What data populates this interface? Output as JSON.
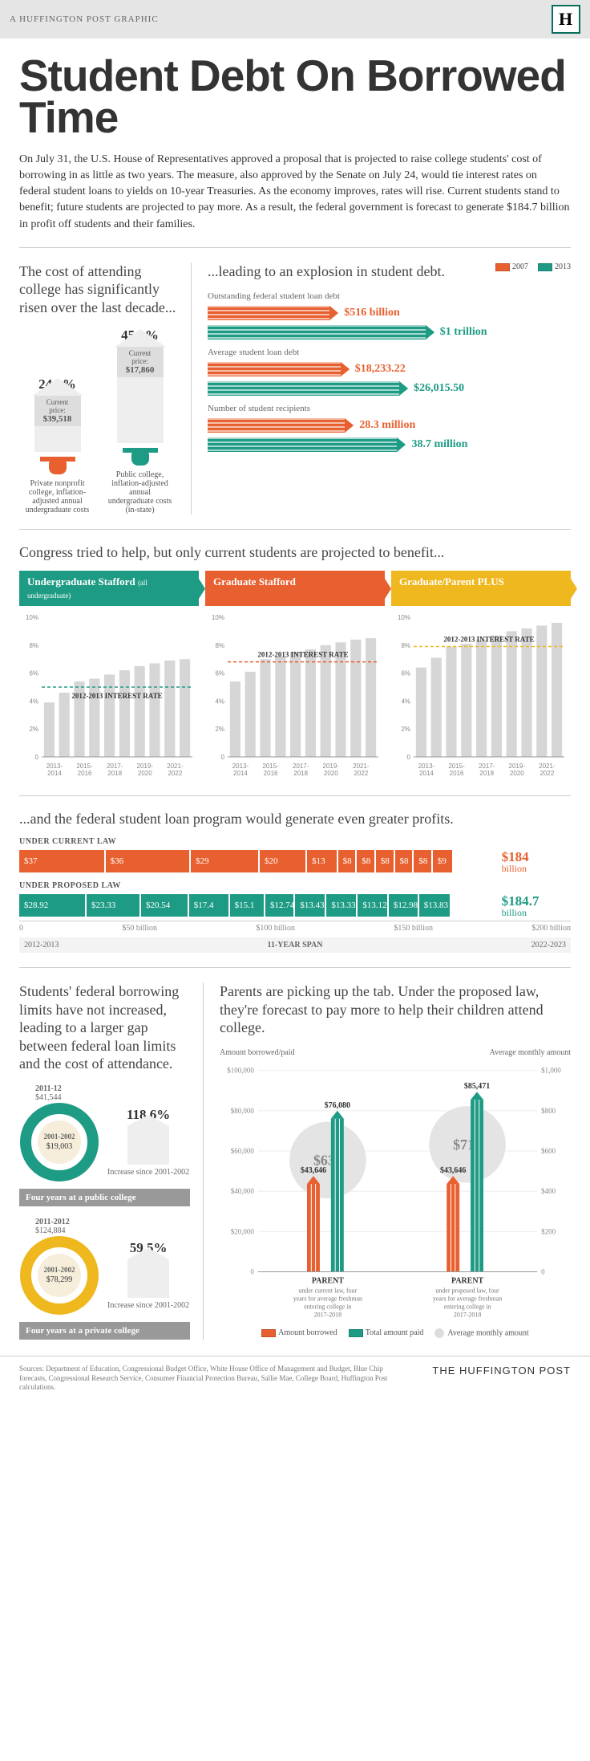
{
  "colors": {
    "orange": "#e8602f",
    "teal": "#1e9b84",
    "yellow": "#f0b81f",
    "gray_bar": "#d6d6d6",
    "gray_light": "#ededed",
    "text": "#333333",
    "rule": "#cccccc"
  },
  "header": {
    "graphic_label": "A HUFFINGTON POST GRAPHIC",
    "logo": "H"
  },
  "title": "Student Debt On Borrowed Time",
  "intro": "On July 31, the U.S. House of Representatives approved a proposal that is projected to raise college students' cost of borrowing in as little as two years. The measure, also approved by the Senate on July 24, would tie interest rates on federal student loans to yields on 10-year Treasuries. As the economy improves, rates will rise. Current students stand to benefit; future students are projected to pay more. As a result, the federal government is forecast to generate $184.7 billion in profit off students and their families.",
  "cost": {
    "title": "The cost of attending college has significantly risen over the last decade...",
    "private": {
      "pct": "24.9%",
      "price_label": "Current price:",
      "price": "$39,518",
      "caption": "Private nonprofit college, inflation-adjusted annual undergraduate costs",
      "arrow_h": 70,
      "color": "#e8602f"
    },
    "public": {
      "pct": "45.2%",
      "price_label": "Current price:",
      "price": "$17,860",
      "caption": "Public college, inflation-adjusted annual undergraduate costs (in-state)",
      "arrow_h": 120,
      "color": "#1e9b84"
    }
  },
  "explosion": {
    "title": "...leading to an explosion in student debt.",
    "legend": [
      {
        "label": "2007",
        "color": "#e8602f"
      },
      {
        "label": "2013",
        "color": "#1e9b84"
      }
    ],
    "metrics": [
      {
        "label": "Outstanding federal student loan debt",
        "bars": [
          {
            "pct": 56,
            "color": "#e8602f",
            "value": "$516 billion"
          },
          {
            "pct": 100,
            "color": "#1e9b84",
            "value": "$1 trillion"
          }
        ]
      },
      {
        "label": "Average student loan debt",
        "bars": [
          {
            "pct": 61,
            "color": "#e8602f",
            "value": "$18,233.22"
          },
          {
            "pct": 88,
            "color": "#1e9b84",
            "value": "$26,015.50"
          }
        ]
      },
      {
        "label": "Number of student recipients",
        "bars": [
          {
            "pct": 63,
            "color": "#e8602f",
            "value": "28.3 million"
          },
          {
            "pct": 87,
            "color": "#1e9b84",
            "value": "38.7 million"
          }
        ]
      }
    ]
  },
  "congress": {
    "title": "Congress tried to help, but only current students are projected to benefit...",
    "tabs": [
      {
        "label": "Undergraduate Stafford",
        "sub": "(all undergraduate)",
        "color": "#1e9b84"
      },
      {
        "label": "Graduate Stafford",
        "sub": "",
        "color": "#e8602f"
      },
      {
        "label": "Graduate/Parent PLUS",
        "sub": "",
        "color": "#f0b81f"
      }
    ],
    "yticks": [
      "0",
      "2%",
      "4%",
      "6%",
      "8%",
      "10%"
    ],
    "xticks": [
      "2013-2014",
      "2015-2016",
      "2017-2018",
      "2019-2020",
      "2021-2022"
    ],
    "rate_label": "2012-2013 INTEREST RATE",
    "charts": [
      {
        "line_y": 5.0,
        "line_color": "#1e9b84",
        "bars": [
          3.9,
          4.6,
          5.4,
          5.6,
          5.9,
          6.2,
          6.5,
          6.7,
          6.9,
          7.0
        ]
      },
      {
        "line_y": 6.8,
        "line_color": "#e8602f",
        "bars": [
          5.4,
          6.1,
          7.0,
          7.2,
          7.5,
          7.7,
          8.0,
          8.2,
          8.4,
          8.5
        ]
      },
      {
        "line_y": 7.9,
        "line_color": "#f0b81f",
        "bars": [
          6.4,
          7.1,
          7.9,
          8.1,
          8.4,
          8.7,
          9.0,
          9.2,
          9.4,
          9.6
        ]
      }
    ]
  },
  "profits": {
    "title": "...and the federal student loan program would generate even greater profits.",
    "rows": [
      {
        "label": "UNDER CURRENT LAW",
        "color": "#e8602f",
        "total": "$184 billion",
        "segs": [
          {
            "w": 18.2,
            "v": "$37"
          },
          {
            "w": 18.0,
            "v": "$36"
          },
          {
            "w": 14.5,
            "v": "$29"
          },
          {
            "w": 10.0,
            "v": "$20"
          },
          {
            "w": 6.5,
            "v": "$13"
          },
          {
            "w": 4.0,
            "v": "$8"
          },
          {
            "w": 4.0,
            "v": "$8"
          },
          {
            "w": 4.0,
            "v": "$8"
          },
          {
            "w": 4.0,
            "v": "$8"
          },
          {
            "w": 4.0,
            "v": "$8"
          },
          {
            "w": 4.5,
            "v": "$9"
          }
        ]
      },
      {
        "label": "UNDER PROPOSED LAW",
        "color": "#1e9b84",
        "total": "$184.7 billion",
        "segs": [
          {
            "w": 14.2,
            "v": "$28.92"
          },
          {
            "w": 11.5,
            "v": "$23.33"
          },
          {
            "w": 10.1,
            "v": "$20.54"
          },
          {
            "w": 8.6,
            "v": "$17.4"
          },
          {
            "w": 7.5,
            "v": "$15.1"
          },
          {
            "w": 6.3,
            "v": "$12.74"
          },
          {
            "w": 6.6,
            "v": "$13.43"
          },
          {
            "w": 6.6,
            "v": "$13.33"
          },
          {
            "w": 6.5,
            "v": "$13.12"
          },
          {
            "w": 6.4,
            "v": "$12.98"
          },
          {
            "w": 6.8,
            "v": "$13.83"
          }
        ]
      }
    ],
    "axis": [
      "0",
      "$50 billion",
      "$100 billion",
      "$150 billion",
      "$200 billion"
    ],
    "span": {
      "start": "2012-2013",
      "mid": "11-YEAR SPAN",
      "end": "2022-2023"
    }
  },
  "limits": {
    "title": "Students' federal borrowing limits have not increased, leading to a larger gap between federal loan limits and the cost of attendance.",
    "items": [
      {
        "outer_label": "2011-12",
        "outer_val": "$41,544",
        "inner_label": "2001-2002",
        "inner_val": "$19,003",
        "pct": "118.6%",
        "inc_label": "Increase since 2001-2002",
        "bar": "Four years at a public college",
        "color": "#1e9b84"
      },
      {
        "outer_label": "2011-2012",
        "outer_val": "$124,884",
        "inner_label": "2001-2002",
        "inner_val": "$78,299",
        "pct": "59.5%",
        "inc_label": "Increase since 2001-2002",
        "bar": "Four years at a private college",
        "color": "#f0b81f"
      }
    ]
  },
  "parents": {
    "title": "Parents are picking up the tab. Under the proposed law, they're forecast to pay more to help their children attend college.",
    "left_axis_title": "Amount borrowed/paid",
    "right_axis_title": "Average monthly amount",
    "left_ticks": [
      "0",
      "$20,000",
      "$40,000",
      "$60,000",
      "$80,000",
      "$100,000"
    ],
    "right_ticks": [
      "0",
      "$200",
      "$400",
      "$600",
      "$800",
      "$1,000"
    ],
    "groups": [
      {
        "borrowed": 43646,
        "paid": 76080,
        "monthly": 634,
        "label": "PARENT",
        "sub": "under current law, four years for average freshman entering college in 2017-2018"
      },
      {
        "borrowed": 43646,
        "paid": 85471,
        "monthly": 712,
        "label": "PARENT",
        "sub": "under proposed law, four years for average freshman entering college in 2017-2018"
      }
    ],
    "legend": [
      {
        "label": "Amount borrowed",
        "color": "#e8602f",
        "type": "sq"
      },
      {
        "label": "Total amount paid",
        "color": "#1e9b84",
        "type": "sq"
      },
      {
        "label": "Average monthly amount",
        "color": "#dddddd",
        "type": "circ"
      }
    ]
  },
  "sources": {
    "text": "Sources: Department of Education, Congressional Budget Office, White House Office of Management and Budget, Blue Chip forecasts, Congressional Research Service, Consumer Financial Protection Bureau, Sallie Mae, College Board, Huffington Post calculations.",
    "brand": "THE HUFFINGTON POST"
  }
}
